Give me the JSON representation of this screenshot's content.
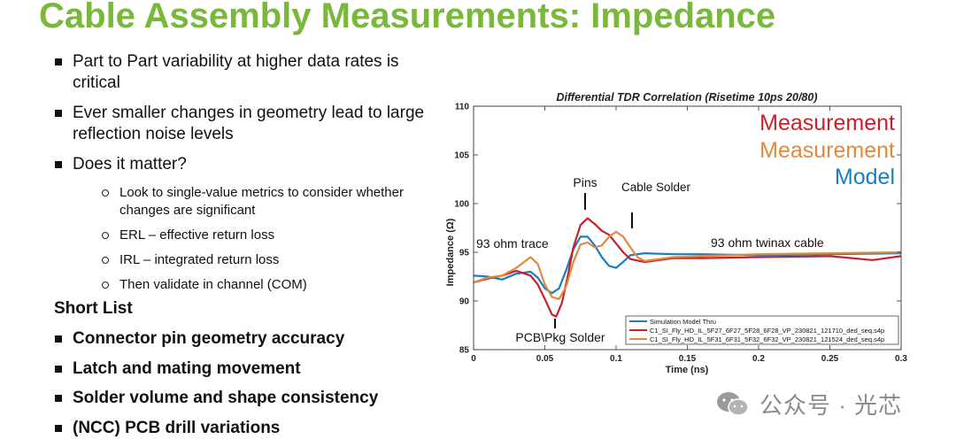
{
  "slide": {
    "title": "Cable Assembly Measurements: Impedance",
    "bullets": [
      {
        "text": "Part to Part variability at higher data rates is critical"
      },
      {
        "text": "Ever smaller changes in geometry lead to large reflection noise levels"
      },
      {
        "text": "Does it matter?"
      }
    ],
    "sub_bullets": [
      {
        "text": "Look to single-value metrics to consider whether changes are significant"
      },
      {
        "text": "ERL – effective return loss"
      },
      {
        "text": "IRL – integrated return loss"
      },
      {
        "text": "Then validate in channel (COM)"
      }
    ],
    "short_list_title": "Short List",
    "short_list": [
      {
        "text": "Connector pin geometry accuracy"
      },
      {
        "text": "Latch and mating movement"
      },
      {
        "text": "Solder volume and shape consistency"
      },
      {
        "text": "(NCC) PCB drill variations"
      }
    ]
  },
  "chart_data": {
    "type": "line",
    "title": "Differential TDR Correlation (Risetime 10ps 20/80)",
    "xlabel": "Time (ns)",
    "ylabel": "Impedance (Ω)",
    "xlim": [
      0,
      0.3
    ],
    "ylim": [
      85,
      110
    ],
    "xticks": [
      0,
      0.05,
      0.1,
      0.15,
      0.2,
      0.25,
      0.3
    ],
    "xtick_labels": [
      "0",
      "0.05",
      "0.1",
      "0.15",
      "0.2",
      "0.25",
      "0.3"
    ],
    "yticks": [
      85,
      90,
      95,
      100,
      105,
      110
    ],
    "grid": false,
    "legend_position": "bottom-left",
    "big_labels": [
      {
        "text": "Measurement",
        "color": "#c8202a"
      },
      {
        "text": "Measurement",
        "color": "#e08a3c"
      },
      {
        "text": "Model",
        "color": "#1a7fc1"
      }
    ],
    "annotations": [
      {
        "text": "Pins"
      },
      {
        "text": "Cable Solder"
      },
      {
        "text": "93 ohm trace"
      },
      {
        "text": "93 ohm twinax cable"
      },
      {
        "text": "PCB\\Pkg Solder"
      }
    ],
    "series": [
      {
        "name": "Simulation Model Thru",
        "color": "#1a7fc1",
        "x": [
          0,
          0.01,
          0.02,
          0.03,
          0.04,
          0.045,
          0.05,
          0.055,
          0.06,
          0.065,
          0.07,
          0.075,
          0.08,
          0.085,
          0.09,
          0.095,
          0.1,
          0.105,
          0.11,
          0.12,
          0.14,
          0.16,
          0.2,
          0.25,
          0.3
        ],
        "y": [
          92.6,
          92.5,
          92.2,
          92.8,
          93.0,
          92.4,
          91.3,
          90.8,
          91.3,
          93.2,
          95.3,
          96.6,
          96.6,
          95.7,
          94.5,
          93.6,
          93.4,
          94.0,
          94.7,
          94.9,
          94.8,
          94.8,
          94.7,
          94.8,
          94.9
        ]
      },
      {
        "name": "C1_SI_Fly_HD_IL_5F27_6F27_5F28_6F28_VP_230821_121710_ded_seq.s4p",
        "color": "#c8202a",
        "x": [
          0,
          0.01,
          0.02,
          0.03,
          0.04,
          0.045,
          0.05,
          0.055,
          0.058,
          0.062,
          0.066,
          0.07,
          0.075,
          0.08,
          0.085,
          0.09,
          0.095,
          0.1,
          0.105,
          0.11,
          0.12,
          0.14,
          0.16,
          0.2,
          0.25,
          0.28,
          0.3
        ],
        "y": [
          91.9,
          92.3,
          92.6,
          93.1,
          92.6,
          91.7,
          90.2,
          88.6,
          88.4,
          89.8,
          92.5,
          95.5,
          97.8,
          98.5,
          97.9,
          97.2,
          96.8,
          95.9,
          95.0,
          94.3,
          94.0,
          94.4,
          94.4,
          94.5,
          94.6,
          94.2,
          94.6
        ]
      },
      {
        "name": "C1_SI_Fly_HD_IL_5F31_6F31_5F32_6F32_VP_230821_121524_ded_seq.s4p",
        "color": "#e08a3c",
        "x": [
          0,
          0.01,
          0.02,
          0.03,
          0.04,
          0.045,
          0.05,
          0.055,
          0.06,
          0.065,
          0.07,
          0.075,
          0.08,
          0.085,
          0.09,
          0.095,
          0.1,
          0.105,
          0.11,
          0.115,
          0.12,
          0.14,
          0.16,
          0.2,
          0.25,
          0.3
        ],
        "y": [
          91.9,
          92.4,
          92.6,
          93.4,
          94.5,
          93.8,
          91.7,
          90.4,
          90.2,
          91.5,
          94.0,
          95.8,
          96.0,
          95.5,
          95.7,
          96.6,
          97.1,
          96.6,
          95.5,
          94.5,
          94.1,
          94.5,
          94.6,
          94.8,
          94.9,
          95.0
        ]
      }
    ]
  }
}
